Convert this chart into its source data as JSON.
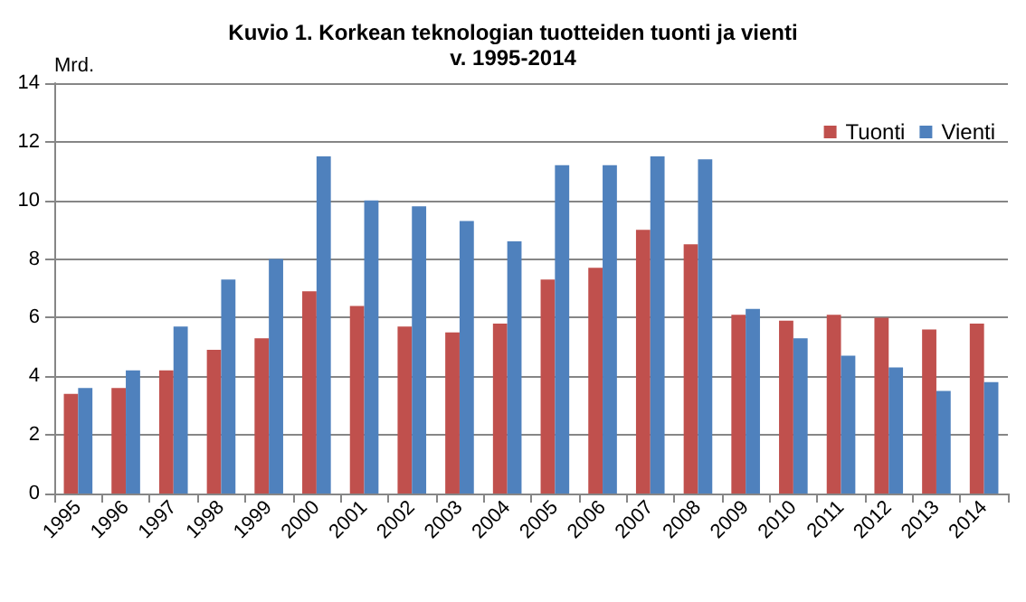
{
  "chart_data": {
    "type": "bar",
    "title": "Kuvio 1. Korkean teknologian tuotteiden tuonti ja vienti\nv. 1995-2014",
    "ylabel": "Mrd.",
    "categories": [
      "1995",
      "1996",
      "1997",
      "1998",
      "1999",
      "2000",
      "2001",
      "2002",
      "2003",
      "2004",
      "2005",
      "2006",
      "2007",
      "2008",
      "2009",
      "2010",
      "2011",
      "2012",
      "2013",
      "2014"
    ],
    "series": [
      {
        "name": "Tuonti",
        "color": "#c0504d",
        "values": [
          3.4,
          3.6,
          4.2,
          4.9,
          5.3,
          6.9,
          6.4,
          5.7,
          5.5,
          5.8,
          7.3,
          7.7,
          9.0,
          8.5,
          6.1,
          5.9,
          6.1,
          6.0,
          5.6,
          5.8
        ]
      },
      {
        "name": "Vienti",
        "color": "#4f81bd",
        "values": [
          3.6,
          4.2,
          5.7,
          7.3,
          8.0,
          11.5,
          10.0,
          9.8,
          9.3,
          8.6,
          11.2,
          11.2,
          11.5,
          11.4,
          6.3,
          5.3,
          4.7,
          4.3,
          3.5,
          3.8
        ]
      }
    ],
    "ylim": [
      0,
      14
    ],
    "yticks": [
      0,
      2,
      4,
      6,
      8,
      10,
      12,
      14
    ],
    "grid": "y",
    "legend": "top right"
  }
}
